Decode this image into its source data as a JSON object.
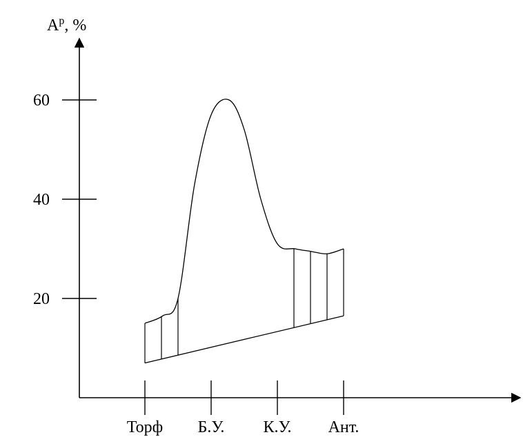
{
  "chart_data": {
    "type": "line",
    "ylabel": "A",
    "ylabel_superscript": "p",
    "ylabel_unit": ", %",
    "categories": [
      "Торф",
      "Б.У.",
      "К.У.",
      "Ант."
    ],
    "yticks": [
      20,
      40,
      60
    ],
    "ylim": [
      0,
      70
    ],
    "grid": false,
    "series": [
      {
        "role": "upper",
        "x": [
          1.0,
          1.27,
          1.5,
          1.75,
          2.0,
          2.27,
          2.5,
          2.75,
          3.0,
          3.27,
          3.5,
          3.75,
          4.0
        ],
        "y": [
          15.0,
          16.5,
          20.0,
          43.0,
          57.0,
          60.0,
          54.0,
          40.0,
          31.0,
          30.0,
          29.5,
          29.0,
          30.0
        ]
      },
      {
        "role": "lower",
        "x": [
          1.0,
          4.0
        ],
        "y": [
          7.0,
          16.5
        ]
      }
    ],
    "hatch_x": [
      1.0,
      1.25,
      1.5,
      3.25,
      3.5,
      3.75,
      4.0
    ]
  }
}
